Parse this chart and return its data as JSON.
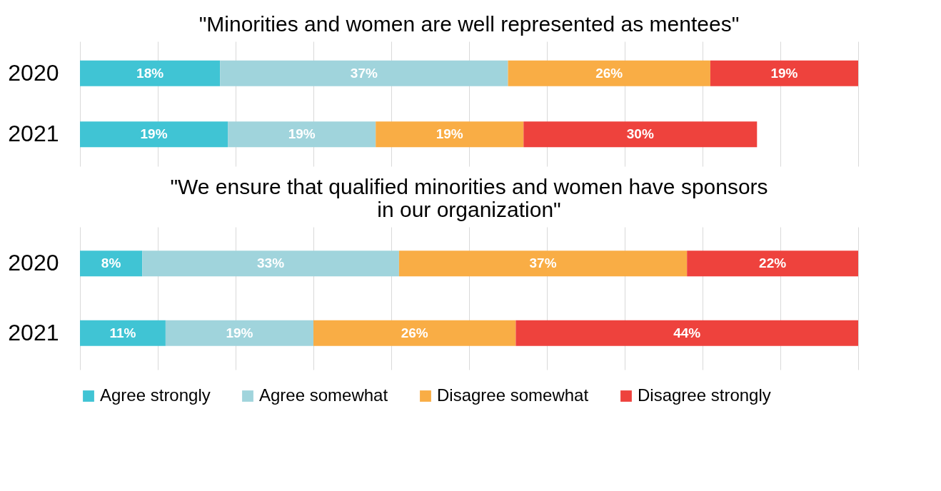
{
  "chart_data": [
    {
      "type": "bar",
      "orientation": "horizontal",
      "stacked": true,
      "title": "\"Minorities and women are well represented as mentees\"",
      "categories": [
        "2020",
        "2021"
      ],
      "series": [
        {
          "name": "Agree strongly",
          "color": "#40c4d4",
          "values": [
            18,
            19
          ],
          "value_labels": [
            "18%",
            "19%"
          ]
        },
        {
          "name": "Agree somewhat",
          "color": "#a0d4dc",
          "values": [
            37,
            19
          ],
          "value_labels": [
            "37%",
            "19%"
          ]
        },
        {
          "name": "Disagree somewhat",
          "color": "#f9ad45",
          "values": [
            26,
            19
          ],
          "value_labels": [
            "26%",
            "19%"
          ]
        },
        {
          "name": "Disagree strongly",
          "color": "#ee423d",
          "values": [
            19,
            30
          ],
          "value_labels": [
            "19%",
            "30%"
          ]
        }
      ],
      "xlim": [
        0,
        100
      ],
      "xticks": [
        {
          "value": 0,
          "label": null
        },
        {
          "value": 10,
          "label": null
        },
        {
          "value": 20,
          "label": null
        },
        {
          "value": 30,
          "label": null
        },
        {
          "value": 40,
          "label": null
        },
        {
          "value": 50,
          "label": null
        },
        {
          "value": 60,
          "label": null
        },
        {
          "value": 70,
          "label": null
        },
        {
          "value": 80,
          "label": null
        },
        {
          "value": 90,
          "label": null
        },
        {
          "value": 100,
          "label": null
        }
      ],
      "tick_labels": "y",
      "grid": "x",
      "legend": "bottom"
    },
    {
      "type": "bar",
      "orientation": "horizontal",
      "stacked": true,
      "title": "\"We ensure that qualified minorities and women have sponsors\nin our organization\"",
      "categories": [
        "2020",
        "2021"
      ],
      "series": [
        {
          "name": "Agree strongly",
          "color": "#40c4d4",
          "values": [
            8,
            11
          ],
          "value_labels": [
            "8%",
            "11%"
          ]
        },
        {
          "name": "Agree somewhat",
          "color": "#a0d4dc",
          "values": [
            33,
            19
          ],
          "value_labels": [
            "33%",
            "19%"
          ]
        },
        {
          "name": "Disagree somewhat",
          "color": "#f9ad45",
          "values": [
            37,
            26
          ],
          "value_labels": [
            "37%",
            "26%"
          ]
        },
        {
          "name": "Disagree strongly",
          "color": "#ee423d",
          "values": [
            22,
            44
          ],
          "value_labels": [
            "22%",
            "44%"
          ]
        }
      ],
      "xlim": [
        0,
        100
      ],
      "xticks": [
        {
          "value": 0,
          "label": null
        },
        {
          "value": 10,
          "label": null
        },
        {
          "value": 20,
          "label": null
        },
        {
          "value": 30,
          "label": null
        },
        {
          "value": 40,
          "label": null
        },
        {
          "value": 50,
          "label": null
        },
        {
          "value": 60,
          "label": null
        },
        {
          "value": 70,
          "label": null
        },
        {
          "value": 80,
          "label": null
        },
        {
          "value": 90,
          "label": null
        },
        {
          "value": 100,
          "label": null
        }
      ],
      "tick_labels": "y",
      "grid": "x",
      "legend": "bottom"
    }
  ]
}
